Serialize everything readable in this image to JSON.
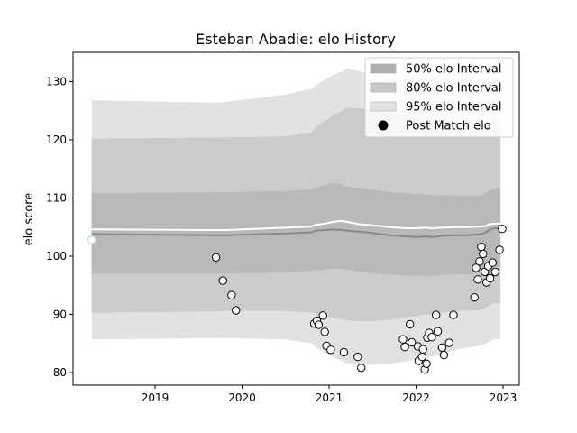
{
  "chart_data": {
    "type": "line",
    "title": "Esteban Abadie: elo History",
    "xlabel": "",
    "ylabel": "elo score",
    "xlim": [
      2018.1,
      2023.25
    ],
    "ylim": [
      78,
      135
    ],
    "x_ticks": [
      2019,
      2020,
      2021,
      2022,
      2023
    ],
    "y_ticks": [
      80,
      90,
      100,
      110,
      120,
      130
    ],
    "grid": false,
    "legend_position": "top-right",
    "legend": [
      {
        "label": "50% elo Interval",
        "color": "#b0b0b0",
        "kind": "band"
      },
      {
        "label": "80% elo Interval",
        "color": "#c8c8c8",
        "kind": "band"
      },
      {
        "label": "95% elo Interval",
        "color": "#e2e2e2",
        "kind": "band"
      },
      {
        "label": "Post Match elo",
        "color": "#000000",
        "kind": "marker"
      }
    ],
    "bands": {
      "x": [
        2018.27,
        2019.7,
        2019.8,
        2020.5,
        2020.8,
        2020.85,
        2020.95,
        2021.05,
        2021.15,
        2021.2,
        2021.35,
        2021.5,
        2021.7,
        2021.9,
        2022.0,
        2022.1,
        2022.2,
        2022.3,
        2022.45,
        2022.6,
        2022.75,
        2022.8,
        2022.85,
        2022.9,
        2022.97
      ],
      "center": [
        103.8,
        103.6,
        103.6,
        103.9,
        104.1,
        104.4,
        104.5,
        104.6,
        104.5,
        104.4,
        104.2,
        104.0,
        103.6,
        103.4,
        103.3,
        103.4,
        103.3,
        103.5,
        103.6,
        103.6,
        103.8,
        104.1,
        104.6,
        104.8,
        104.8
      ],
      "q50": {
        "low": [
          97.0,
          97.0,
          97.0,
          97.2,
          97.5,
          97.5,
          97.7,
          97.9,
          97.8,
          97.7,
          97.4,
          97.1,
          96.8,
          96.7,
          96.6,
          96.7,
          96.6,
          96.8,
          96.9,
          96.9,
          97.1,
          97.4,
          98.0,
          98.2,
          98.2
        ],
        "high": [
          110.8,
          111.0,
          111.0,
          111.2,
          111.5,
          111.9,
          112.2,
          112.6,
          112.3,
          112.0,
          111.7,
          111.4,
          111.0,
          110.8,
          110.6,
          110.6,
          110.4,
          110.5,
          110.4,
          110.3,
          110.4,
          110.9,
          111.3,
          111.7,
          111.7
        ]
      },
      "q80": {
        "low": [
          90.3,
          90.5,
          90.6,
          90.6,
          90.3,
          90.1,
          89.7,
          89.4,
          89.2,
          89.0,
          88.8,
          88.8,
          89.1,
          89.5,
          89.7,
          89.9,
          90.0,
          90.3,
          90.6,
          90.6,
          90.8,
          91.1,
          91.6,
          92.0,
          92.0
        ],
        "high": [
          120.2,
          120.4,
          120.4,
          120.6,
          121.3,
          122.3,
          123.2,
          124.3,
          125.0,
          125.5,
          125.4,
          125.0,
          124.6,
          124.2,
          124.0,
          123.9,
          123.6,
          123.4,
          123.0,
          122.8,
          122.8,
          123.0,
          123.2,
          123.3,
          123.3
        ]
      },
      "q95": {
        "low": [
          85.7,
          85.9,
          85.9,
          85.7,
          85.0,
          84.3,
          83.4,
          82.6,
          82.0,
          81.6,
          81.4,
          81.3,
          81.5,
          82.0,
          82.3,
          82.6,
          82.8,
          83.3,
          83.9,
          84.3,
          84.7,
          85.0,
          85.4,
          85.8,
          85.8
        ],
        "high": [
          126.8,
          126.4,
          126.5,
          127.8,
          128.8,
          129.5,
          130.3,
          131.2,
          131.7,
          132.3,
          131.8,
          131.2,
          130.6,
          130.3,
          130.1,
          130.0,
          129.7,
          129.5,
          129.3,
          129.2,
          129.2,
          129.6,
          130.0,
          130.2,
          130.2
        ]
      }
    },
    "expected_line": {
      "x": [
        2018.27,
        2019.7,
        2019.8,
        2020.5,
        2020.8,
        2020.85,
        2020.95,
        2021.05,
        2021.15,
        2021.2,
        2021.35,
        2021.5,
        2021.7,
        2021.9,
        2022.0,
        2022.1,
        2022.2,
        2022.3,
        2022.45,
        2022.6,
        2022.75,
        2022.8,
        2022.85,
        2022.9,
        2022.97
      ],
      "y": [
        104.6,
        104.5,
        104.5,
        104.9,
        105.1,
        105.4,
        105.6,
        105.9,
        106.1,
        105.9,
        105.5,
        105.3,
        105.0,
        104.8,
        104.8,
        104.9,
        104.8,
        104.9,
        105.0,
        105.0,
        105.1,
        105.2,
        105.5,
        105.6,
        105.6
      ]
    },
    "series": [
      {
        "name": "Post Match elo",
        "points": [
          [
            2018.27,
            102.8
          ],
          [
            2019.7,
            99.8
          ],
          [
            2019.78,
            95.8
          ],
          [
            2019.88,
            93.3
          ],
          [
            2019.93,
            90.7
          ],
          [
            2020.83,
            88.4
          ],
          [
            2020.86,
            88.9
          ],
          [
            2020.88,
            88.2
          ],
          [
            2020.93,
            89.8
          ],
          [
            2020.95,
            87.0
          ],
          [
            2020.97,
            84.6
          ],
          [
            2021.02,
            83.9
          ],
          [
            2021.17,
            83.5
          ],
          [
            2021.33,
            82.7
          ],
          [
            2021.37,
            80.8
          ],
          [
            2021.85,
            85.7
          ],
          [
            2021.87,
            84.4
          ],
          [
            2021.93,
            88.3
          ],
          [
            2021.95,
            85.2
          ],
          [
            2022.02,
            84.5
          ],
          [
            2022.03,
            82.0
          ],
          [
            2022.07,
            82.7
          ],
          [
            2022.08,
            84.0
          ],
          [
            2022.1,
            80.5
          ],
          [
            2022.12,
            81.5
          ],
          [
            2022.13,
            86.0
          ],
          [
            2022.15,
            86.8
          ],
          [
            2022.18,
            86.1
          ],
          [
            2022.23,
            89.9
          ],
          [
            2022.25,
            87.1
          ],
          [
            2022.3,
            84.3
          ],
          [
            2022.32,
            83.0
          ],
          [
            2022.38,
            85.1
          ],
          [
            2022.43,
            89.9
          ],
          [
            2022.67,
            92.9
          ],
          [
            2022.69,
            98.0
          ],
          [
            2022.71,
            96.0
          ],
          [
            2022.73,
            99.1
          ],
          [
            2022.75,
            101.6
          ],
          [
            2022.77,
            100.4
          ],
          [
            2022.79,
            97.3
          ],
          [
            2022.81,
            95.5
          ],
          [
            2022.83,
            98.3
          ],
          [
            2022.85,
            96.2
          ],
          [
            2022.88,
            98.9
          ],
          [
            2022.91,
            97.3
          ],
          [
            2022.96,
            101.1
          ],
          [
            2022.99,
            104.7
          ]
        ]
      }
    ]
  }
}
